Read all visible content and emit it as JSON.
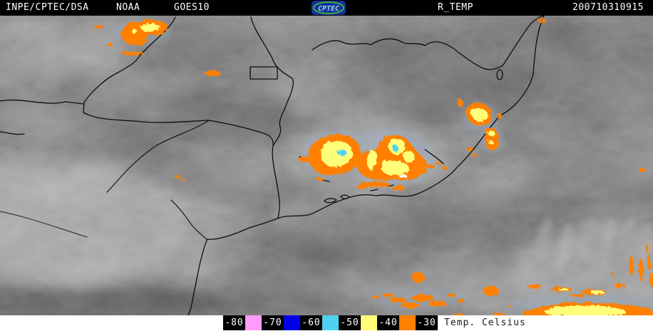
{
  "header": {
    "agency": "INPE/CPTEC/DSA",
    "network": "NOAA",
    "satellite": "GOES10",
    "logo_text": "CPTEC",
    "product": "R_TEMP",
    "timestamp": "200710310915"
  },
  "legend": {
    "tick_labels": [
      "-80",
      "-70",
      "-60",
      "-50",
      "-40",
      "-30"
    ],
    "swatch_colors": [
      "#ff9cfa",
      "#0000e8",
      "#4fd2ef",
      "#ffff7a",
      "#ff7f00"
    ],
    "unit_label": "Temp. Celsius"
  },
  "colors": {
    "header_bg": "#000000",
    "header_text": "#ffffff",
    "legend_bg": "#ffffff",
    "tick_box_bg": "#000000",
    "tick_text": "#ffffff",
    "map_base_gray": "#6f6f6f",
    "boundary_line": "#0d0d0d",
    "storm_orange": "#ff7f00",
    "storm_yellow": "#ffff7a",
    "storm_cyan": "#55d2ee"
  }
}
